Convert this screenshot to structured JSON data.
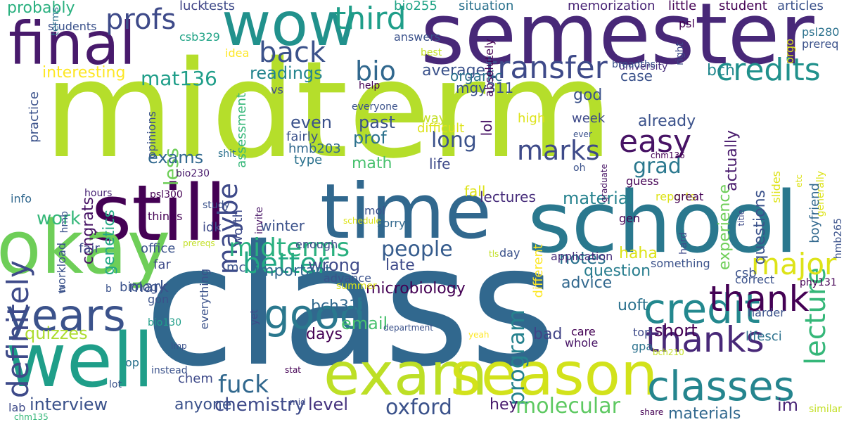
{
  "words": [
    {
      "text": "midterm",
      "color": "#b5de2b"
    },
    {
      "text": "class",
      "color": "#31688e"
    },
    {
      "text": "semester",
      "color": "#482878"
    },
    {
      "text": "school",
      "color": "#2a788e"
    },
    {
      "text": "time",
      "color": "#31688e"
    },
    {
      "text": "still",
      "color": "#440154"
    },
    {
      "text": "wow",
      "color": "#21918c"
    },
    {
      "text": "final",
      "color": "#481a6c"
    },
    {
      "text": "okay",
      "color": "#6ece58"
    },
    {
      "text": "well",
      "color": "#1f9e89"
    },
    {
      "text": "exam",
      "color": "#bddf26"
    },
    {
      "text": "season",
      "color": "#d2e21b"
    },
    {
      "text": "classes",
      "color": "#25858e"
    },
    {
      "text": "good",
      "color": "#2a788e"
    },
    {
      "text": "years",
      "color": "#3b528b"
    },
    {
      "text": "credits",
      "color": "#21918c"
    },
    {
      "text": "transfer",
      "color": "#3e4a89"
    },
    {
      "text": "third",
      "color": "#1f9e89"
    },
    {
      "text": "profs",
      "color": "#3e4a89"
    },
    {
      "text": "better",
      "color": "#22a884"
    },
    {
      "text": "thanks",
      "color": "#482878"
    },
    {
      "text": "credit",
      "color": "#23888e"
    },
    {
      "text": "thank",
      "color": "#440154"
    },
    {
      "text": "easy",
      "color": "#471365"
    },
    {
      "text": "marks",
      "color": "#3e4a89"
    },
    {
      "text": "lecture",
      "color": "#35b779"
    },
    {
      "text": "definitely",
      "color": "#3e4a89"
    },
    {
      "text": "maybe",
      "color": "#3e4a89"
    },
    {
      "text": "midterms",
      "color": "#2ab07f"
    },
    {
      "text": "major",
      "color": "#dde318"
    },
    {
      "text": "back",
      "color": "#3b528b"
    },
    {
      "text": "bio",
      "color": "#31688e"
    },
    {
      "text": "program",
      "color": "#26828e"
    },
    {
      "text": "fuck",
      "color": "#31688e"
    },
    {
      "text": "quizzes",
      "color": "#addc30"
    },
    {
      "text": "long",
      "color": "#3b528b"
    },
    {
      "text": "grad",
      "color": "#2a788e"
    },
    {
      "text": "people",
      "color": "#365c8d"
    },
    {
      "text": "mat136",
      "color": "#1f9e89"
    },
    {
      "text": "chemistry",
      "color": "#3e4a89"
    },
    {
      "text": "oxford",
      "color": "#3b528b"
    },
    {
      "text": "molecular",
      "color": "#5ec962"
    },
    {
      "text": "level",
      "color": "#46337e"
    },
    {
      "text": "interview",
      "color": "#3b528b"
    },
    {
      "text": "probably",
      "color": "#2ab07f"
    },
    {
      "text": "work",
      "color": "#35b779"
    },
    {
      "text": "email",
      "color": "#48c16e"
    },
    {
      "text": "readings",
      "color": "#25858e"
    },
    {
      "text": "interesting",
      "color": "#fde725"
    },
    {
      "text": "average",
      "color": "#3b528b"
    },
    {
      "text": "less",
      "color": "#6ece58"
    },
    {
      "text": "genetics",
      "color": "#22a884"
    },
    {
      "text": "congrats",
      "color": "#471365"
    },
    {
      "text": "exams",
      "color": "#31688e"
    },
    {
      "text": "past",
      "color": "#3b528b"
    },
    {
      "text": "prof",
      "color": "#2c728e"
    },
    {
      "text": "math",
      "color": "#48c16e"
    },
    {
      "text": "even",
      "color": "#3b528b"
    },
    {
      "text": "material",
      "color": "#26828e"
    },
    {
      "text": "lectures",
      "color": "#472d7b"
    },
    {
      "text": "notes",
      "color": "#2c728e"
    },
    {
      "text": "wrong",
      "color": "#3e4a89"
    },
    {
      "text": "late",
      "color": "#3e4a89"
    },
    {
      "text": "important",
      "color": "#31688e"
    },
    {
      "text": "microbiology",
      "color": "#440154"
    },
    {
      "text": "bch311",
      "color": "#31688e"
    },
    {
      "text": "question",
      "color": "#287d8e"
    },
    {
      "text": "advice",
      "color": "#31688e"
    },
    {
      "text": "short",
      "color": "#440154"
    },
    {
      "text": "uoft",
      "color": "#2c728e"
    },
    {
      "text": "bad",
      "color": "#414487"
    },
    {
      "text": "haha",
      "color": "#dde318"
    },
    {
      "text": "days",
      "color": "#440154"
    },
    {
      "text": "mark",
      "color": "#3b528b"
    },
    {
      "text": "hey",
      "color": "#481a6c"
    },
    {
      "text": "anyone",
      "color": "#3b528b"
    },
    {
      "text": "materials",
      "color": "#31688e"
    },
    {
      "text": "im",
      "color": "#482475"
    },
    {
      "text": "already",
      "color": "#3b528b"
    },
    {
      "text": "experience",
      "color": "#6ece58"
    },
    {
      "text": "questions",
      "color": "#3b528b"
    },
    {
      "text": "actually",
      "color": "#481a6c"
    },
    {
      "text": "god",
      "color": "#3b528b"
    },
    {
      "text": "case",
      "color": "#3b528b"
    },
    {
      "text": "life",
      "color": "#3e4a89"
    },
    {
      "text": "fall",
      "color": "#dde318"
    },
    {
      "text": "winter",
      "color": "#3b528b"
    },
    {
      "text": "mgy311",
      "color": "#3b528b"
    },
    {
      "text": "lol",
      "color": "#471365"
    },
    {
      "text": "week",
      "color": "#3e4a89"
    },
    {
      "text": "high",
      "color": "#dde318"
    },
    {
      "text": "difficult",
      "color": "#dde318"
    },
    {
      "text": "way",
      "color": "#c2df23"
    },
    {
      "text": "bch",
      "color": "#23888e"
    },
    {
      "text": "organic",
      "color": "#2c728e"
    },
    {
      "text": "luck",
      "color": "#414487"
    },
    {
      "text": "tests",
      "color": "#3e4a89"
    },
    {
      "text": "bio255",
      "color": "#20a386"
    },
    {
      "text": "situation",
      "color": "#2c728e"
    },
    {
      "text": "memorization",
      "color": "#482475"
    },
    {
      "text": "little",
      "color": "#440154"
    },
    {
      "text": "student",
      "color": "#440154"
    },
    {
      "text": "articles",
      "color": "#3b528b"
    },
    {
      "text": "students",
      "color": "#3b528b"
    },
    {
      "text": "csb329",
      "color": "#20a386"
    },
    {
      "text": "answers",
      "color": "#3b528b"
    },
    {
      "text": "absolutely",
      "color": "#440154"
    },
    {
      "text": "psl",
      "color": "#440154"
    },
    {
      "text": "psl280",
      "color": "#2c728e"
    },
    {
      "text": "prereq",
      "color": "#3b528b"
    },
    {
      "text": "idea",
      "color": "#fde725"
    },
    {
      "text": "best",
      "color": "#c2df23"
    },
    {
      "text": "university",
      "color": "#472d7b"
    },
    {
      "text": "breadths",
      "color": "#3b528b"
    },
    {
      "text": "orgo",
      "color": "#dde318"
    },
    {
      "text": "right",
      "color": "#3e4a89"
    },
    {
      "text": "terms",
      "color": "#2c728e"
    },
    {
      "text": "practice",
      "color": "#3b528b"
    },
    {
      "text": "vs",
      "color": "#3e4a89"
    },
    {
      "text": "help",
      "color": "#440154"
    },
    {
      "text": "everyone",
      "color": "#3b528b"
    },
    {
      "text": "assessment",
      "color": "#35b779"
    },
    {
      "text": "opinions",
      "color": "#3b528b"
    },
    {
      "text": "hmb203",
      "color": "#31688e"
    },
    {
      "text": "fairly",
      "color": "#3b528b"
    },
    {
      "text": "type",
      "color": "#2c728e"
    },
    {
      "text": "shit",
      "color": "#2c728e"
    },
    {
      "text": "bio230",
      "color": "#481a6c"
    },
    {
      "text": "info",
      "color": "#31688e"
    },
    {
      "text": "hours",
      "color": "#482475"
    },
    {
      "text": "hmb",
      "color": "#3b528b"
    },
    {
      "text": "psl300",
      "color": "#440154"
    },
    {
      "text": "study",
      "color": "#3b528b"
    },
    {
      "text": "things",
      "color": "#440154"
    },
    {
      "text": "idk",
      "color": "#3e4a89"
    },
    {
      "text": "worth",
      "color": "#3e4a89"
    },
    {
      "text": "invite",
      "color": "#471365"
    },
    {
      "text": "schedule",
      "color": "#dde318"
    },
    {
      "text": "fair",
      "color": "#3e4a89"
    },
    {
      "text": "office",
      "color": "#3b528b"
    },
    {
      "text": "far",
      "color": "#3e4a89"
    },
    {
      "text": "enough",
      "color": "#3e4a89"
    },
    {
      "text": "prereqs",
      "color": "#c2df23"
    },
    {
      "text": "workload",
      "color": "#3b528b"
    },
    {
      "text": "mc",
      "color": "#3b528b"
    },
    {
      "text": "advance",
      "color": "#3b528b"
    },
    {
      "text": "summer",
      "color": "#dde318"
    },
    {
      "text": "yet",
      "color": "#3e4a89"
    },
    {
      "text": "biology",
      "color": "#3b528b"
    },
    {
      "text": "gon",
      "color": "#3b528b"
    },
    {
      "text": "op",
      "color": "#2c728e"
    },
    {
      "text": "bio130",
      "color": "#1f9e89"
    },
    {
      "text": "instead",
      "color": "#3b528b"
    },
    {
      "text": "chem",
      "color": "#3e4a89"
    },
    {
      "text": "lot",
      "color": "#3b528b"
    },
    {
      "text": "lab",
      "color": "#3e4a89"
    },
    {
      "text": "chm135",
      "color": "#35b779"
    },
    {
      "text": "lmp",
      "color": "#3b528b"
    },
    {
      "text": "ta",
      "color": "#3b528b"
    },
    {
      "text": "b",
      "color": "#3b528b"
    },
    {
      "text": "mid",
      "color": "#3e4a89"
    },
    {
      "text": "stat",
      "color": "#440154"
    },
    {
      "text": "department",
      "color": "#3b528b"
    },
    {
      "text": "yeah",
      "color": "#fde725"
    },
    {
      "text": "care",
      "color": "#440154"
    },
    {
      "text": "whole",
      "color": "#471365"
    },
    {
      "text": "top",
      "color": "#3e4a89"
    },
    {
      "text": "gpa",
      "color": "#2c728e"
    },
    {
      "text": "bch210",
      "color": "#c2df23"
    },
    {
      "text": "harder",
      "color": "#3b528b"
    },
    {
      "text": "lifesci",
      "color": "#2c728e"
    },
    {
      "text": "phy131",
      "color": "#440154"
    },
    {
      "text": "hmb265",
      "color": "#3b528b"
    },
    {
      "text": "correct",
      "color": "#3b528b"
    },
    {
      "text": "application",
      "color": "#472d7b"
    },
    {
      "text": "something",
      "color": "#3b528b"
    },
    {
      "text": "tls",
      "color": "#c2df23"
    },
    {
      "text": "day",
      "color": "#3b528b"
    },
    {
      "text": "different",
      "color": "#fde725"
    },
    {
      "text": "reports",
      "color": "#dde318"
    },
    {
      "text": "great",
      "color": "#440154"
    },
    {
      "text": "gen",
      "color": "#440154"
    },
    {
      "text": "hard",
      "color": "#3e4a89"
    },
    {
      "text": "csb",
      "color": "#3b528b"
    },
    {
      "text": "etc",
      "color": "#dde318"
    },
    {
      "text": "title",
      "color": "#3e4a89"
    },
    {
      "text": "generally",
      "color": "#dde318"
    },
    {
      "text": "boyfriend",
      "color": "#31688e"
    },
    {
      "text": "slides",
      "color": "#dde318"
    },
    {
      "text": "guess",
      "color": "#440154"
    },
    {
      "text": "oh",
      "color": "#3b528b"
    },
    {
      "text": "graduate",
      "color": "#471365"
    },
    {
      "text": "ever",
      "color": "#3b528b"
    },
    {
      "text": "chm136",
      "color": "#440154"
    },
    {
      "text": "share",
      "color": "#440154"
    },
    {
      "text": "similar",
      "color": "#c2df23"
    },
    {
      "text": "mol",
      "color": "#3b528b"
    },
    {
      "text": "sorry",
      "color": "#31688e"
    },
    {
      "text": "everything",
      "color": "#3b528b"
    }
  ]
}
